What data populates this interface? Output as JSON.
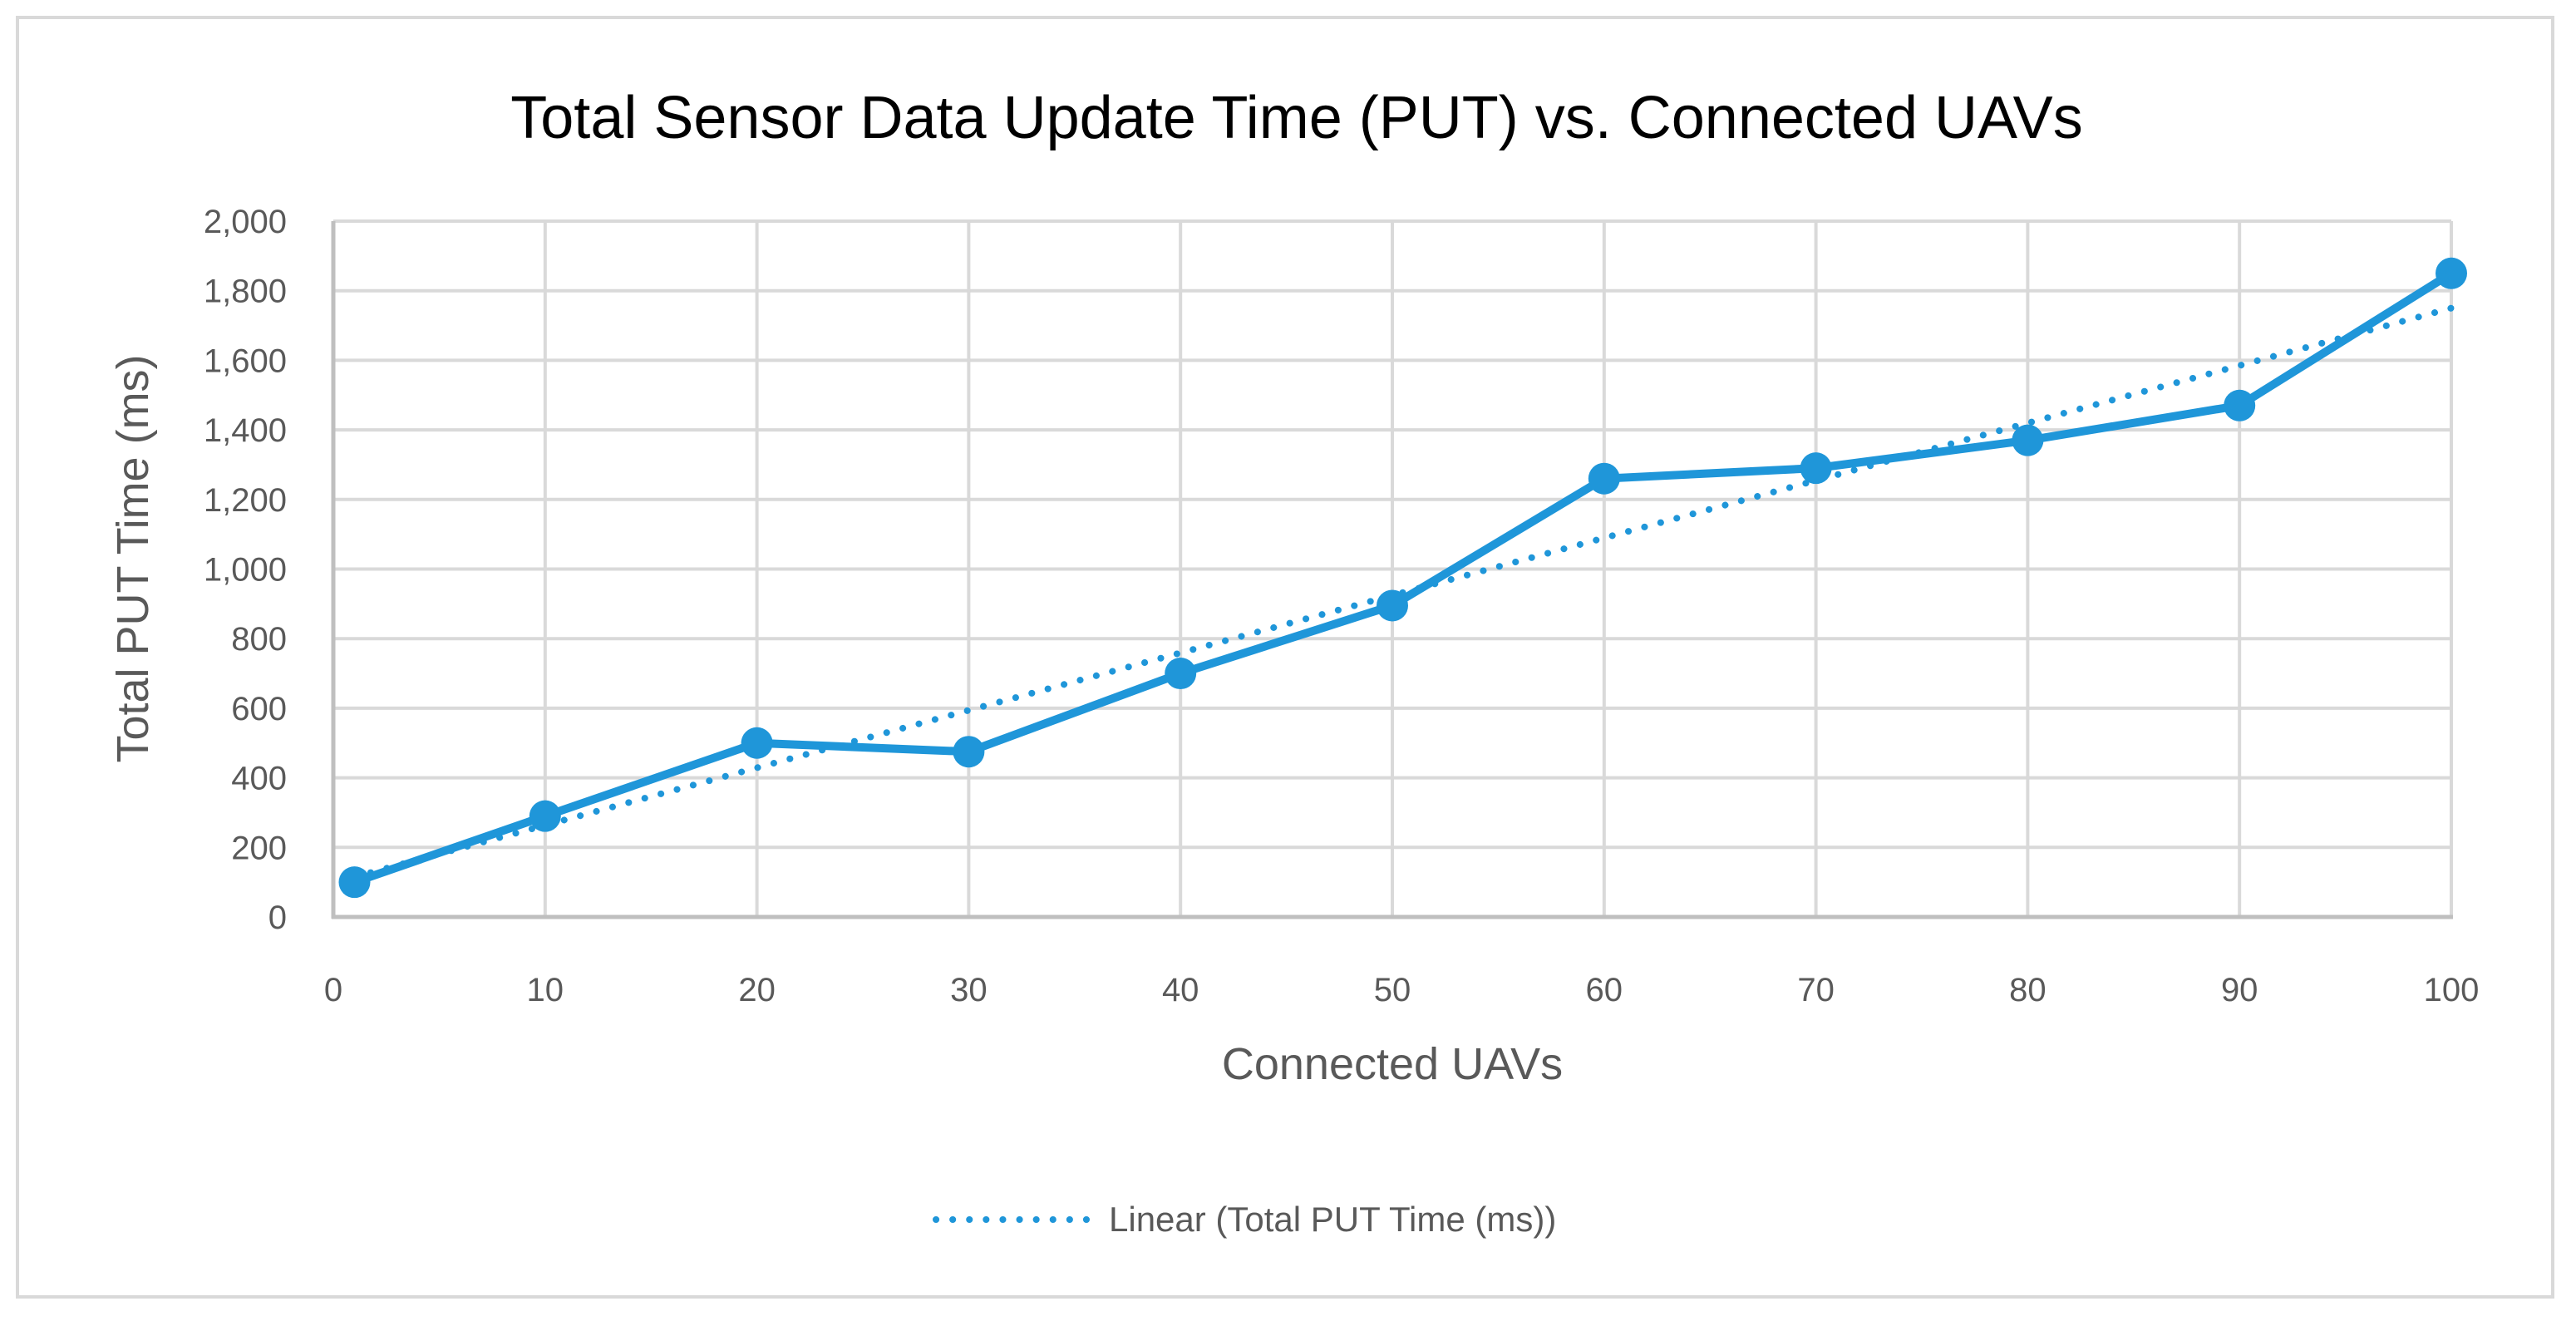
{
  "chart": {
    "title": "Total Sensor Data Update Time (PUT) vs. Connected UAVs",
    "xlabel": "Connected UAVs",
    "ylabel": "Total PUT Time (ms)",
    "legend_label": "Linear (Total PUT Time (ms))",
    "y_ticks": [
      "0",
      "200",
      "400",
      "600",
      "800",
      "1,000",
      "1,200",
      "1,400",
      "1,600",
      "1,800",
      "2,000"
    ],
    "x_ticks": [
      "0",
      "10",
      "20",
      "30",
      "40",
      "50",
      "60",
      "70",
      "80",
      "90",
      "100"
    ]
  },
  "colors": {
    "series": "#1f96d9",
    "gridline": "#d9d9d9",
    "axis": "#bfbfbf",
    "frame": "#d9d9d9",
    "title": "#000000",
    "label": "#595959"
  },
  "chart_data": {
    "type": "line",
    "title": "Total Sensor Data Update Time (PUT) vs. Connected UAVs",
    "xlabel": "Connected UAVs",
    "ylabel": "Total PUT Time (ms)",
    "x": [
      1,
      10,
      20,
      30,
      40,
      50,
      60,
      70,
      80,
      90,
      100
    ],
    "series": [
      {
        "name": "Total PUT Time (ms)",
        "values": [
          100,
          290,
          500,
          475,
          700,
          895,
          1260,
          1290,
          1370,
          1470,
          1850
        ],
        "style": "solid line with circle markers"
      },
      {
        "name": "Linear (Total PUT Time (ms))",
        "x": [
          1,
          100
        ],
        "values": [
          115,
          1750
        ],
        "style": "dotted linear trendline"
      }
    ],
    "xlim": [
      0,
      100
    ],
    "ylim": [
      0,
      2000
    ],
    "x_ticks": [
      0,
      10,
      20,
      30,
      40,
      50,
      60,
      70,
      80,
      90,
      100
    ],
    "y_ticks": [
      0,
      200,
      400,
      600,
      800,
      1000,
      1200,
      1400,
      1600,
      1800,
      2000
    ],
    "grid": true,
    "legend_position": "bottom",
    "legend_entries": [
      "Linear (Total PUT Time (ms))"
    ]
  }
}
